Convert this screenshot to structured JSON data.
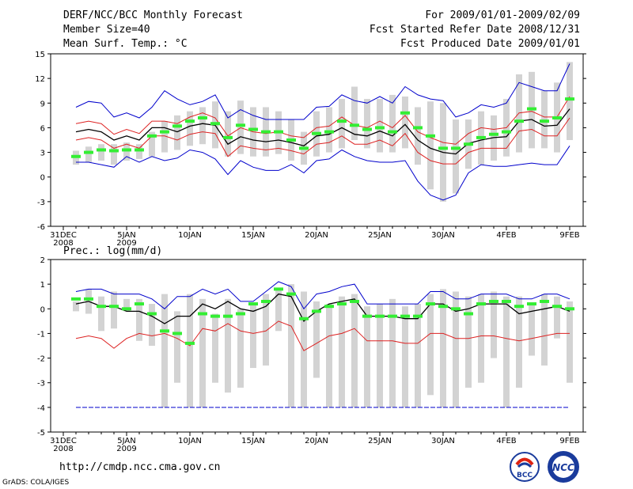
{
  "header": {
    "title": "DERF/NCC/BCC Monthly Forecast",
    "member_size": "Member Size=40",
    "variable1": "Mean Surf. Temp.: °C",
    "period": "For 2009/01/01-2009/02/09",
    "fcst_started": "Fcst Started Refer Date 2008/12/31",
    "fcst_produced": "Fcst Produced Date 2009/01/01"
  },
  "footer": {
    "url": "http://cmdp.ncc.cma.gov.cn",
    "grads": "GrADS: COLA/IGES",
    "logo_bcc": "BCC",
    "logo_ncc": "NCC"
  },
  "colors": {
    "box": "#d3d3d3",
    "median": "#33ee33",
    "mean": "#000000",
    "inner": "#dd2222",
    "outer": "#0000cc"
  },
  "chart_data": [
    {
      "type": "line",
      "title": "Mean Surf. Temp.: °C",
      "xlabel": "",
      "ylabel": "°C",
      "ylim": [
        -6,
        15
      ],
      "yticks": [
        -6,
        -3,
        0,
        3,
        6,
        9,
        12,
        15
      ],
      "xlim": [
        0,
        40
      ],
      "xticks": [
        {
          "day": 0,
          "label": "31DEC",
          "sub": "2008"
        },
        {
          "day": 5,
          "label": "5JAN",
          "sub": "2009"
        },
        {
          "day": 10,
          "label": "10JAN",
          "sub": ""
        },
        {
          "day": 15,
          "label": "15JAN",
          "sub": ""
        },
        {
          "day": 20,
          "label": "20JAN",
          "sub": ""
        },
        {
          "day": 25,
          "label": "25JAN",
          "sub": ""
        },
        {
          "day": 30,
          "label": "30JAN",
          "sub": ""
        },
        {
          "day": 35,
          "label": "4FEB",
          "sub": ""
        },
        {
          "day": 40,
          "label": "9FEB",
          "sub": ""
        }
      ],
      "x": [
        1,
        2,
        3,
        4,
        5,
        6,
        7,
        8,
        9,
        10,
        11,
        12,
        13,
        14,
        15,
        16,
        17,
        18,
        19,
        20,
        21,
        22,
        23,
        24,
        25,
        26,
        27,
        28,
        29,
        30,
        31,
        32,
        33,
        34,
        35,
        36,
        37,
        38,
        39,
        40
      ],
      "box_low": [
        1.5,
        1.8,
        2.0,
        1.5,
        2.0,
        2.2,
        2.5,
        3.0,
        3.3,
        3.8,
        4.0,
        3.5,
        2.5,
        2.8,
        2.5,
        2.5,
        2.8,
        2.0,
        1.5,
        2.5,
        3.0,
        3.5,
        4.5,
        3.5,
        3.0,
        3.0,
        3.5,
        1.5,
        -1.5,
        -3.0,
        -2.0,
        1.0,
        1.5,
        2.0,
        2.5,
        3.0,
        3.5,
        3.5,
        3.0,
        4.5
      ],
      "box_high": [
        3.2,
        3.7,
        4.0,
        4.0,
        4.2,
        4.0,
        5.5,
        6.8,
        7.5,
        8.0,
        8.5,
        9.2,
        8.0,
        9.3,
        8.5,
        8.5,
        8.0,
        7.0,
        5.5,
        8.0,
        8.5,
        9.5,
        11.0,
        9.5,
        9.5,
        10.0,
        9.8,
        8.5,
        9.2,
        9.0,
        7.0,
        7.0,
        8.0,
        7.5,
        9.5,
        12.5,
        12.8,
        10.5,
        11.5,
        14.0
      ],
      "series": [
        {
          "name": "median",
          "values": [
            2.5,
            3.0,
            3.3,
            3.2,
            3.3,
            3.3,
            5.0,
            5.5,
            6.2,
            6.8,
            7.2,
            6.5,
            4.8,
            6.3,
            5.8,
            5.5,
            5.5,
            4.5,
            3.5,
            5.3,
            5.5,
            6.8,
            6.3,
            5.8,
            6.0,
            5.5,
            7.8,
            6.0,
            5.0,
            3.5,
            3.5,
            4.0,
            4.8,
            5.2,
            5.5,
            6.8,
            8.3,
            6.8,
            7.2,
            9.5
          ]
        },
        {
          "name": "mean",
          "values": [
            5.5,
            5.8,
            5.5,
            4.5,
            5.0,
            4.5,
            6.0,
            6.0,
            5.5,
            6.2,
            6.5,
            6.3,
            4.0,
            4.9,
            4.5,
            4.3,
            4.5,
            4.2,
            3.8,
            5.0,
            5.2,
            6.0,
            5.2,
            5.0,
            5.6,
            5.0,
            6.4,
            4.5,
            3.5,
            3.0,
            2.8,
            4.1,
            4.5,
            4.8,
            4.9,
            6.8,
            7.0,
            6.2,
            6.3,
            8.3
          ]
        },
        {
          "name": "mean_plus_sd",
          "values": [
            6.5,
            6.8,
            6.5,
            5.2,
            5.8,
            5.3,
            6.8,
            6.8,
            6.5,
            7.3,
            7.8,
            7.2,
            5.0,
            6.0,
            5.5,
            5.3,
            5.5,
            5.0,
            4.8,
            6.0,
            6.2,
            7.3,
            6.3,
            6.0,
            6.8,
            6.0,
            7.5,
            5.5,
            4.8,
            4.2,
            4.0,
            5.3,
            6.0,
            5.8,
            6.0,
            7.8,
            8.0,
            7.3,
            7.3,
            9.8
          ]
        },
        {
          "name": "mean_minus_sd",
          "values": [
            4.5,
            4.8,
            4.5,
            3.5,
            4.0,
            3.5,
            5.0,
            5.0,
            4.5,
            5.2,
            5.5,
            5.3,
            2.5,
            3.8,
            3.5,
            3.3,
            3.5,
            3.2,
            2.8,
            4.0,
            4.2,
            5.0,
            4.0,
            4.0,
            4.5,
            3.8,
            5.3,
            3.0,
            2.0,
            1.6,
            1.6,
            3.0,
            3.5,
            3.5,
            3.5,
            5.6,
            5.8,
            5.0,
            5.0,
            7.2
          ]
        },
        {
          "name": "max",
          "values": [
            8.5,
            9.2,
            9.0,
            7.3,
            7.8,
            7.2,
            8.5,
            10.5,
            9.5,
            8.8,
            9.2,
            10.0,
            7.2,
            8.2,
            7.5,
            7.0,
            7.0,
            7.0,
            7.0,
            8.5,
            8.6,
            10.0,
            9.3,
            9.0,
            9.8,
            9.0,
            11.0,
            10.0,
            9.5,
            9.3,
            7.3,
            7.8,
            8.8,
            8.5,
            9.0,
            11.5,
            11.0,
            10.5,
            10.5,
            13.8
          ]
        },
        {
          "name": "min",
          "values": [
            1.8,
            1.8,
            1.5,
            1.2,
            2.5,
            1.8,
            2.5,
            2.0,
            2.3,
            3.3,
            3.0,
            2.2,
            0.3,
            2.0,
            1.2,
            0.8,
            0.8,
            1.5,
            0.5,
            2.0,
            2.2,
            3.3,
            2.5,
            2.0,
            1.8,
            1.8,
            2.0,
            -0.5,
            -2.2,
            -2.8,
            -2.2,
            0.5,
            1.5,
            1.3,
            1.3,
            1.5,
            1.7,
            1.5,
            1.5,
            3.8
          ]
        }
      ]
    },
    {
      "type": "line",
      "title": "Prec.: log(mm/d)",
      "xlabel": "",
      "ylabel": "log(mm/d)",
      "ylim": [
        -5,
        2
      ],
      "yticks": [
        -5,
        -4,
        -3,
        -2,
        -1,
        0,
        1,
        2
      ],
      "xlim": [
        0,
        40
      ],
      "xticks": [
        {
          "day": 0,
          "label": "31DEC",
          "sub": "2008"
        },
        {
          "day": 5,
          "label": "5JAN",
          "sub": "2009"
        },
        {
          "day": 10,
          "label": "10JAN",
          "sub": ""
        },
        {
          "day": 15,
          "label": "15JAN",
          "sub": ""
        },
        {
          "day": 20,
          "label": "20JAN",
          "sub": ""
        },
        {
          "day": 25,
          "label": "25JAN",
          "sub": ""
        },
        {
          "day": 30,
          "label": "30JAN",
          "sub": ""
        },
        {
          "day": 35,
          "label": "4FEB",
          "sub": ""
        },
        {
          "day": 40,
          "label": "9FEB",
          "sub": ""
        }
      ],
      "x": [
        1,
        2,
        3,
        4,
        5,
        6,
        7,
        8,
        9,
        10,
        11,
        12,
        13,
        14,
        15,
        16,
        17,
        18,
        19,
        20,
        21,
        22,
        23,
        24,
        25,
        26,
        27,
        28,
        29,
        30,
        31,
        32,
        33,
        34,
        35,
        36,
        37,
        38,
        39,
        40
      ],
      "box_low": [
        -0.1,
        -0.2,
        -0.9,
        -0.8,
        -0.1,
        -1.3,
        -1.5,
        -4.0,
        -3.0,
        -4.0,
        -4.0,
        -3.0,
        -3.4,
        -3.2,
        -2.4,
        -2.3,
        -0.9,
        -4.0,
        -4.0,
        -2.8,
        -4.0,
        -4.0,
        -4.0,
        -4.0,
        -4.0,
        -4.0,
        -4.0,
        -4.0,
        -3.5,
        -4.0,
        -4.0,
        -3.2,
        -3.0,
        -2.0,
        -4.0,
        -3.2,
        -1.9,
        -2.3,
        -1.2,
        -3.0
      ],
      "box_high": [
        0.3,
        0.8,
        0.5,
        0.7,
        0.4,
        0.4,
        0.2,
        0.6,
        -0.1,
        0.6,
        0.4,
        -0.2,
        0.4,
        0.0,
        0.2,
        0.6,
        0.8,
        1.0,
        0.7,
        0.3,
        0.2,
        0.5,
        0.6,
        0.1,
        0.2,
        0.4,
        0.1,
        0.2,
        0.6,
        0.8,
        0.7,
        0.5,
        0.6,
        0.7,
        0.5,
        0.5,
        0.2,
        0.6,
        0.5,
        0.3
      ],
      "series": [
        {
          "name": "median",
          "values": [
            0.4,
            0.4,
            0.1,
            0.1,
            0.0,
            0.2,
            -0.2,
            -0.9,
            -1.0,
            -1.4,
            -0.2,
            -0.3,
            -0.3,
            -0.2,
            0.2,
            0.3,
            0.8,
            0.6,
            -0.4,
            -0.1,
            0.1,
            0.2,
            0.3,
            -0.3,
            -0.3,
            -0.3,
            -0.3,
            -0.3,
            0.2,
            0.1,
            0.0,
            -0.2,
            0.2,
            0.3,
            0.3,
            0.1,
            0.2,
            0.3,
            0.1,
            0.0
          ]
        },
        {
          "name": "mean",
          "values": [
            0.2,
            0.3,
            0.1,
            0.1,
            -0.1,
            -0.1,
            -0.3,
            -0.6,
            -0.3,
            -0.3,
            0.2,
            0.0,
            0.3,
            0.0,
            -0.1,
            0.1,
            0.6,
            0.5,
            -0.5,
            -0.1,
            0.2,
            0.3,
            0.4,
            -0.3,
            -0.3,
            -0.3,
            -0.4,
            -0.4,
            0.2,
            0.2,
            -0.1,
            0.0,
            0.2,
            0.2,
            0.2,
            -0.2,
            -0.1,
            0.0,
            0.1,
            -0.1
          ]
        },
        {
          "name": "max",
          "values": [
            0.7,
            0.8,
            0.8,
            0.6,
            0.6,
            0.6,
            0.4,
            0.0,
            0.5,
            0.5,
            0.8,
            0.6,
            0.8,
            0.3,
            0.3,
            0.7,
            1.1,
            0.9,
            0.0,
            0.6,
            0.7,
            0.9,
            1.0,
            0.2,
            0.2,
            0.2,
            0.2,
            0.2,
            0.7,
            0.7,
            0.4,
            0.4,
            0.6,
            0.6,
            0.6,
            0.4,
            0.4,
            0.6,
            0.6,
            0.4
          ]
        },
        {
          "name": "min",
          "values": [
            -1.2,
            -1.1,
            -1.2,
            -1.6,
            -1.2,
            -1.0,
            -1.1,
            -1.0,
            -1.2,
            -1.5,
            -0.8,
            -0.9,
            -0.6,
            -0.9,
            -1.0,
            -0.9,
            -0.5,
            -0.7,
            -1.7,
            -1.4,
            -1.1,
            -1.0,
            -0.8,
            -1.3,
            -1.3,
            -1.3,
            -1.4,
            -1.4,
            -1.0,
            -1.0,
            -1.2,
            -1.2,
            -1.1,
            -1.1,
            -1.2,
            -1.3,
            -1.2,
            -1.1,
            -1.0,
            -1.0
          ]
        },
        {
          "name": "floor",
          "values": [
            -4,
            -4,
            -4,
            -4,
            -4,
            -4,
            -4,
            -4,
            -4,
            -4,
            -4,
            -4,
            -4,
            -4,
            -4,
            -4,
            -4,
            -4,
            -4,
            -4,
            -4,
            -4,
            -4,
            -4,
            -4,
            -4,
            -4,
            -4,
            -4,
            -4,
            -4,
            -4,
            -4,
            -4,
            -4,
            -4,
            -4,
            -4,
            -4,
            -4
          ]
        }
      ]
    }
  ]
}
